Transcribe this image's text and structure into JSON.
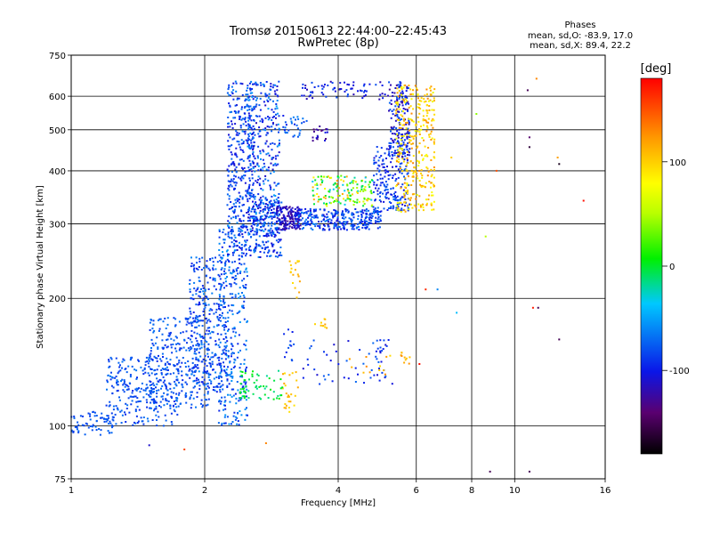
{
  "chart_data": {
    "type": "scatter",
    "title": "Tromsø 20150613 22:44:00–22:45:43",
    "subtitle": "RwPretec (8p)",
    "xlabel": "Frequency [MHz]",
    "ylabel": "Stationary phase Virtual Height [km]",
    "x_scale": "log",
    "y_scale": "log",
    "xlim": [
      1,
      16
    ],
    "ylim": [
      75,
      750
    ],
    "x_ticks": [
      1,
      2,
      4,
      6,
      8,
      10,
      16
    ],
    "y_ticks": [
      75,
      100,
      200,
      300,
      400,
      500,
      600,
      750
    ],
    "grid": true,
    "stats": {
      "heading": "Phases",
      "line_o": "mean, sd,O: -83.9, 17.0",
      "line_x": "mean, sd,X:  89.4, 22.2"
    },
    "colorbar": {
      "unit": "[deg]",
      "range": [
        -180,
        180
      ],
      "ticks": [
        100,
        0,
        -100
      ]
    },
    "series": [
      {
        "clusters": [
          {
            "x": [
              1.0,
              1.25
            ],
            "y": [
              95,
              108
            ],
            "phase": [
              -90,
              -70
            ],
            "count": 70
          },
          {
            "x": [
              1.2,
              1.75
            ],
            "y": [
              100,
              145
            ],
            "phase": [
              -95,
              -65
            ],
            "count": 260
          },
          {
            "x": [
              1.5,
              2.05
            ],
            "y": [
              110,
              180
            ],
            "phase": [
              -95,
              -65
            ],
            "count": 300
          },
          {
            "x": [
              1.85,
              2.25
            ],
            "y": [
              120,
              250
            ],
            "phase": [
              -100,
              -60
            ],
            "count": 330
          },
          {
            "x": [
              2.15,
              2.5
            ],
            "y": [
              100,
              300
            ],
            "phase": [
              -100,
              -50
            ],
            "count": 330
          },
          {
            "x": [
              2.25,
              2.6
            ],
            "y": [
              250,
              650
            ],
            "phase": [
              -110,
              -60
            ],
            "count": 380
          },
          {
            "x": [
              2.5,
              2.95
            ],
            "y": [
              280,
              650
            ],
            "phase": [
              -115,
              -50
            ],
            "count": 330
          },
          {
            "x": [
              2.6,
              3.0
            ],
            "y": [
              250,
              340
            ],
            "phase": [
              -110,
              -60
            ],
            "count": 170
          },
          {
            "x": [
              2.9,
              3.3
            ],
            "y": [
              290,
              330
            ],
            "phase": [
              -130,
              -100
            ],
            "count": 150
          },
          {
            "x": [
              3.2,
              5.0
            ],
            "y": [
              290,
              325
            ],
            "phase": [
              -110,
              -60
            ],
            "count": 300
          },
          {
            "x": [
              3.5,
              4.8
            ],
            "y": [
              330,
              390
            ],
            "phase": [
              -40,
              120
            ],
            "count": 150
          },
          {
            "x": [
              4.8,
              5.8
            ],
            "y": [
              320,
              460
            ],
            "phase": [
              -110,
              -70
            ],
            "count": 200
          },
          {
            "x": [
              5.2,
              5.8
            ],
            "y": [
              430,
              650
            ],
            "phase": [
              -130,
              -70
            ],
            "count": 180
          },
          {
            "x": [
              5.4,
              6.6
            ],
            "y": [
              320,
              640
            ],
            "phase": [
              70,
              130
            ],
            "count": 330
          },
          {
            "x": [
              3.3,
              5.2
            ],
            "y": [
              590,
              650
            ],
            "phase": [
              -120,
              -80
            ],
            "count": 70
          },
          {
            "x": [
              3.0,
              3.4
            ],
            "y": [
              480,
              540
            ],
            "phase": [
              -100,
              -60
            ],
            "count": 30
          },
          {
            "x": [
              3.5,
              3.8
            ],
            "y": [
              470,
              510
            ],
            "phase": [
              -140,
              -100
            ],
            "count": 20
          },
          {
            "x": [
              3.1,
              3.3
            ],
            "y": [
              200,
              250
            ],
            "phase": [
              90,
              120
            ],
            "count": 18
          },
          {
            "x": [
              3.0,
              3.25
            ],
            "y": [
              105,
              135
            ],
            "phase": [
              90,
              120
            ],
            "count": 25
          },
          {
            "x": [
              3.5,
              3.8
            ],
            "y": [
              170,
              180
            ],
            "phase": [
              90,
              120
            ],
            "count": 10
          },
          {
            "x": [
              2.4,
              3.0
            ],
            "y": [
              115,
              135
            ],
            "phase": [
              -20,
              10
            ],
            "count": 60
          },
          {
            "x": [
              3.3,
              5.3
            ],
            "y": [
              125,
              160
            ],
            "phase": [
              -110,
              -70
            ],
            "count": 60
          },
          {
            "x": [
              4.2,
              5.3
            ],
            "y": [
              130,
              150
            ],
            "phase": [
              90,
              130
            ],
            "count": 12
          },
          {
            "x": [
              5.5,
              5.8
            ],
            "y": [
              140,
              150
            ],
            "phase": [
              100,
              130
            ],
            "count": 10
          },
          {
            "x": [
              3.0,
              3.2
            ],
            "y": [
              140,
              170
            ],
            "phase": [
              -100,
              -70
            ],
            "count": 12
          }
        ],
        "points": [
          {
            "x": 1.5,
            "y": 90,
            "phase": -110
          },
          {
            "x": 1.8,
            "y": 88,
            "phase": 155
          },
          {
            "x": 2.75,
            "y": 91,
            "phase": 130
          },
          {
            "x": 6.3,
            "y": 210,
            "phase": 165
          },
          {
            "x": 6.7,
            "y": 210,
            "phase": -60
          },
          {
            "x": 7.4,
            "y": 185,
            "phase": -40
          },
          {
            "x": 6.1,
            "y": 140,
            "phase": 175
          },
          {
            "x": 7.2,
            "y": 430,
            "phase": 100
          },
          {
            "x": 8.2,
            "y": 545,
            "phase": 40
          },
          {
            "x": 8.6,
            "y": 280,
            "phase": 50
          },
          {
            "x": 9.1,
            "y": 400,
            "phase": 150
          },
          {
            "x": 10.7,
            "y": 620,
            "phase": -150
          },
          {
            "x": 10.8,
            "y": 480,
            "phase": -140
          },
          {
            "x": 10.8,
            "y": 455,
            "phase": -160
          },
          {
            "x": 11.0,
            "y": 190,
            "phase": 170
          },
          {
            "x": 11.3,
            "y": 190,
            "phase": -150
          },
          {
            "x": 12.5,
            "y": 430,
            "phase": 120
          },
          {
            "x": 12.6,
            "y": 415,
            "phase": -170
          },
          {
            "x": 12.6,
            "y": 160,
            "phase": -150
          },
          {
            "x": 14.3,
            "y": 340,
            "phase": 175
          },
          {
            "x": 8.8,
            "y": 78,
            "phase": -150
          },
          {
            "x": 10.8,
            "y": 78,
            "phase": -150
          },
          {
            "x": 11.2,
            "y": 660,
            "phase": 130
          }
        ]
      }
    ]
  }
}
